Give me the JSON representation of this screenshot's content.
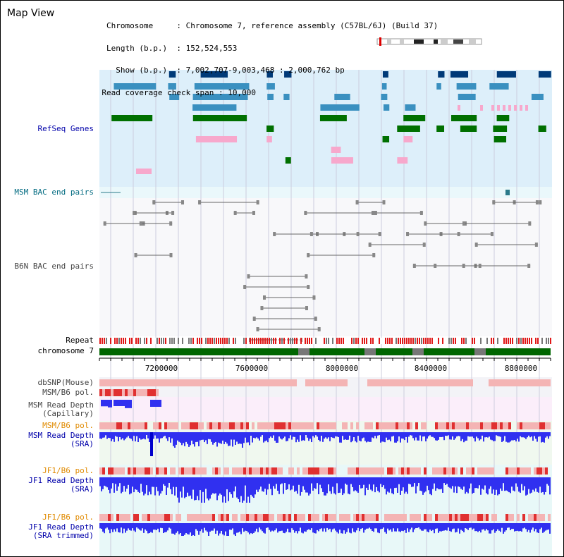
{
  "title": "Map View",
  "info_lines": [
    "Chromosome     : Chromosome 7, reference assembly (C57BL/6J) (Build 37)",
    "Length (b.p.)  : 152,524,553",
    "  Show (b.p.)  : 7,002,707-9,003,468 : 2,000,762 bp",
    "Read coverage check span : 10,000"
  ],
  "track_labels": {
    "refseq": "RefSeq Genes",
    "msm_bac": "MSM BAC end pairs",
    "b6n_bac": "B6N BAC end pairs",
    "repeat": "Repeat",
    "chromosome": "chromosome 7",
    "dbsnp": "dbSNP(Mouse)",
    "msm_pol_1": "MSM/B6 pol.",
    "msm_depth_cap": "MSM Read Depth\n(Capillary)",
    "msm_pol_2": "MSM/B6 pol.",
    "msm_depth_sra": "MSM Read Depth\n(SRA)",
    "jf1_pol_1": "JF1/B6 pol.",
    "jf1_depth_sra": "JF1 Read Depth\n(SRA)",
    "jf1_pol_2": "JF1/B6 pol.",
    "jf1_depth_trim": "JF1 Read Depth\n(SRA trimmed)"
  },
  "axis_ticks": [
    "7200000",
    "7600000",
    "8000000",
    "8400000",
    "8800000"
  ],
  "colors": {
    "label_blue": "#0000aa",
    "label_teal": "#006a80",
    "label_orange": "#e08a00",
    "refseq_bg": "#ddeffa",
    "gene_dark": "#003a78",
    "gene_mid": "#3a90c0",
    "gene_green": "#007000",
    "gene_pink": "#f7a8cc",
    "bac_bg": "#eaf8fb",
    "repeat_red": "#e01818",
    "chrom_green": "#006600",
    "depth_blue": "#3030f0",
    "snp_pink": "#f4b4b4"
  }
}
